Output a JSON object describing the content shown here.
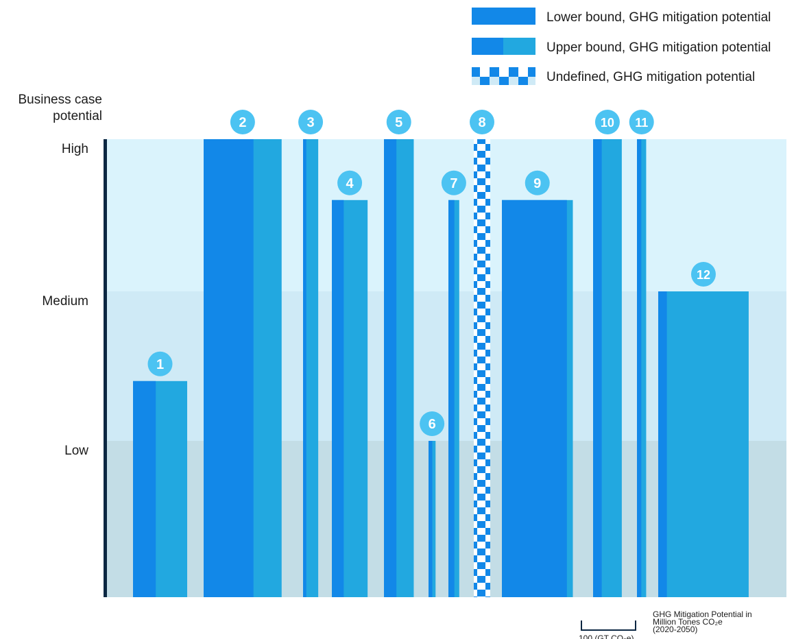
{
  "chart_data": {
    "type": "bar",
    "x_encoding": "bar width proportional to GHG mitigation potential",
    "y_axis": {
      "title": [
        "Business case",
        "potential"
      ],
      "levels": [
        "Low",
        "Medium",
        "High"
      ]
    },
    "legend": {
      "position": "top-right",
      "items": [
        {
          "label": "Lower bound, GHG mitigation potential",
          "style": "solid"
        },
        {
          "label": "Upper bound, GHG mitigation potential",
          "style": "two-tone"
        },
        {
          "label": "Undefined, GHG mitigation potential",
          "style": "checker"
        }
      ]
    },
    "scale_bar": {
      "label": "100 (GT CO₂e)",
      "length_gt": 100
    },
    "x_unit_note": [
      "GHG Mitigation Potential in",
      "Million Tones CO₂e",
      "(2020-2050)"
    ],
    "colors": {
      "lower": "#1288e8",
      "upper": "#22a8e0",
      "badge": "#4cc3f2",
      "band_high": "#daf3fc",
      "band_medium": "#cfeaf6",
      "band_low": "#c3dde6",
      "axis": "#0b2742"
    },
    "bars": [
      {
        "id": "1",
        "level": 1.4,
        "lower_gt": 42,
        "upper_gt": 100
      },
      {
        "id": "2",
        "level": 3.0,
        "lower_gt": 92,
        "upper_gt": 144
      },
      {
        "id": "3",
        "level": 3.0,
        "lower_gt": 6,
        "upper_gt": 28
      },
      {
        "id": "4",
        "level": 2.6,
        "lower_gt": 22,
        "upper_gt": 66
      },
      {
        "id": "5",
        "level": 3.0,
        "lower_gt": 23,
        "upper_gt": 55
      },
      {
        "id": "6",
        "level": 1.0,
        "lower_gt": 7,
        "upper_gt": 13
      },
      {
        "id": "7",
        "level": 2.6,
        "lower_gt": 11,
        "upper_gt": 20
      },
      {
        "id": "8",
        "level": 3.0,
        "undefined": true
      },
      {
        "id": "9",
        "level": 2.6,
        "lower_gt": 120,
        "upper_gt": 131
      },
      {
        "id": "10",
        "level": 3.0,
        "lower_gt": 16,
        "upper_gt": 53
      },
      {
        "id": "11",
        "level": 3.0,
        "lower_gt": 8,
        "upper_gt": 17
      },
      {
        "id": "12",
        "level": 2.0,
        "lower_gt": 16,
        "upper_gt": 167
      }
    ]
  }
}
